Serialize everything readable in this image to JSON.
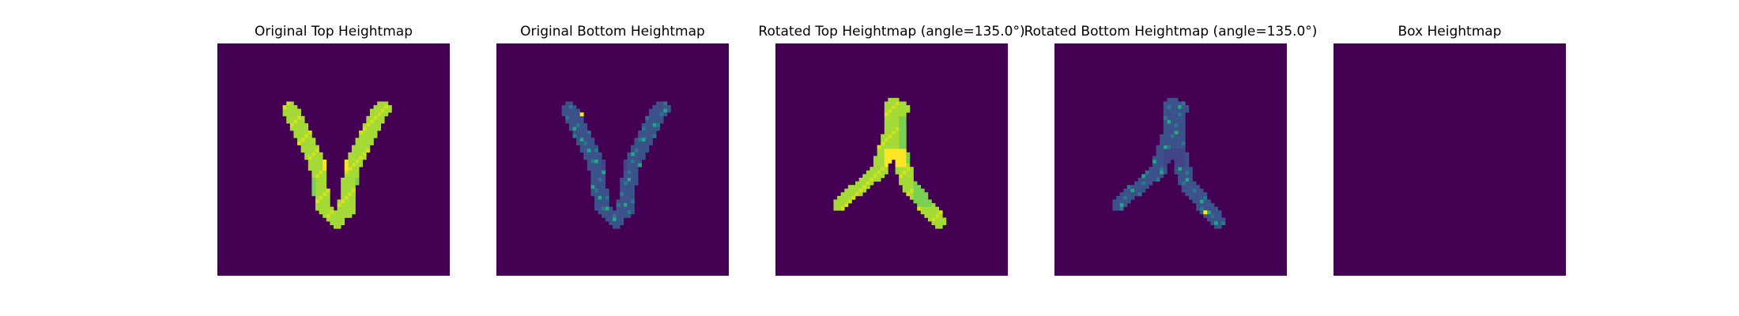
{
  "figure": {
    "colormap": "viridis",
    "colors": {
      "background": "#440154",
      "top_main": "#a5db36",
      "top_light": "#d2e21b",
      "top_peak": "#fde725",
      "top_mid": "#7ad151",
      "bottom_main": "#3b528b",
      "bottom_dark": "#414487",
      "bottom_teal": "#2a788e",
      "bottom_cyan": "#22a884",
      "bottom_peak": "#fde725"
    }
  },
  "chart_data": [
    {
      "type": "heatmap",
      "title": "Original Top Heightmap",
      "grid_size": 64,
      "shape": "v-original",
      "level": "top",
      "axes_visible": false
    },
    {
      "type": "heatmap",
      "title": "Original Bottom Heightmap",
      "grid_size": 64,
      "shape": "v-original",
      "level": "bottom",
      "axes_visible": false
    },
    {
      "type": "heatmap",
      "title": "Rotated Top Heightmap (angle=135.0°)",
      "grid_size": 64,
      "shape": "v-rotated",
      "level": "top",
      "axes_visible": false
    },
    {
      "type": "heatmap",
      "title": "Rotated Bottom Heightmap (angle=135.0°)",
      "grid_size": 64,
      "shape": "v-rotated",
      "level": "bottom",
      "axes_visible": false
    },
    {
      "type": "heatmap",
      "title": "Box Heightmap",
      "grid_size": 64,
      "shape": "empty",
      "level": "none",
      "axes_visible": false
    }
  ]
}
